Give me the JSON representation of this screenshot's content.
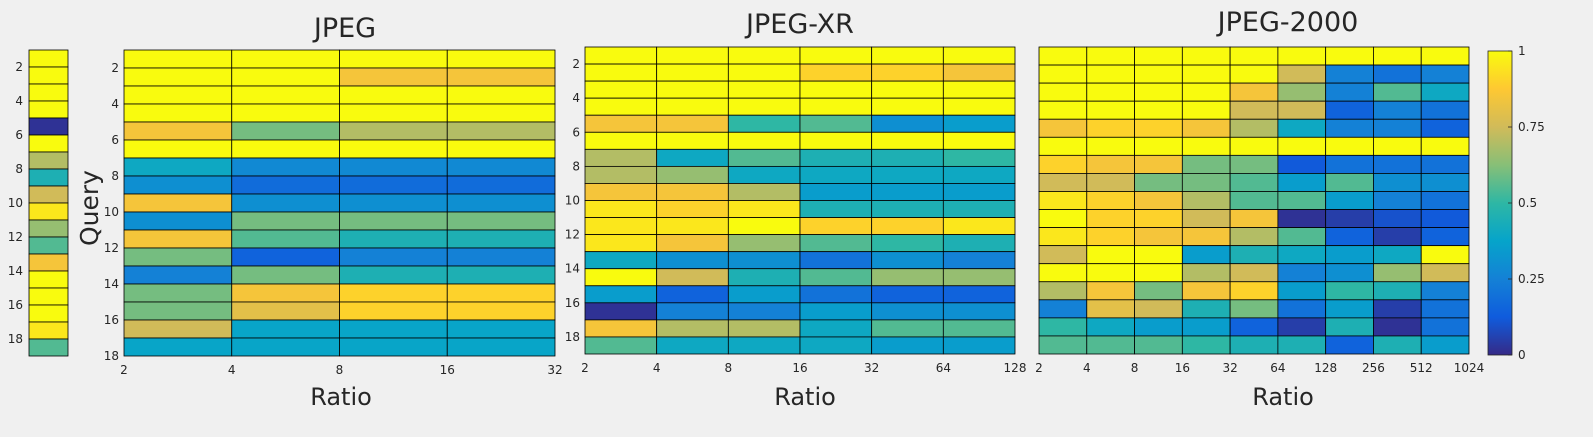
{
  "colormap": [
    "#352a87",
    "#0f5cdd",
    "#1481d6",
    "#06a4ca",
    "#2eb7a4",
    "#87bf77",
    "#d1bb59",
    "#fec832",
    "#f9fb0e"
  ],
  "colorbar": {
    "ticks": [
      0,
      0.25,
      0.5,
      0.75,
      1
    ],
    "labels": [
      "0",
      "0.25",
      "0.5",
      "0.75",
      "1"
    ]
  },
  "chart_data": [
    {
      "type": "heatmap",
      "title": "",
      "ylabel": "",
      "xlabel": "",
      "y_ticks": [
        "2",
        "4",
        "6",
        "8",
        "10",
        "12",
        "14",
        "16",
        "18"
      ],
      "values": [
        [
          1
        ],
        [
          1
        ],
        [
          1
        ],
        [
          1
        ],
        [
          0.02
        ],
        [
          1
        ],
        [
          0.7
        ],
        [
          0.45
        ],
        [
          0.75
        ],
        [
          0.95
        ],
        [
          0.65
        ],
        [
          0.55
        ],
        [
          0.85
        ],
        [
          1
        ],
        [
          1
        ],
        [
          1
        ],
        [
          0.95
        ],
        [
          0.55
        ]
      ]
    },
    {
      "type": "heatmap",
      "title": "JPEG",
      "xlabel": "Ratio",
      "ylabel": "Query",
      "x_ticks": [
        "2",
        "4",
        "8",
        "16",
        "32"
      ],
      "y_ticks": [
        "2",
        "4",
        "6",
        "8",
        "10",
        "12",
        "14",
        "16",
        "18"
      ],
      "values": [
        [
          1,
          1,
          1,
          1
        ],
        [
          1,
          1,
          0.85,
          0.85
        ],
        [
          1,
          1,
          1,
          1
        ],
        [
          1,
          1,
          1,
          1
        ],
        [
          0.85,
          0.6,
          0.7,
          0.7
        ],
        [
          1,
          1,
          1,
          1
        ],
        [
          0.4,
          0.28,
          0.28,
          0.28
        ],
        [
          0.3,
          0.18,
          0.18,
          0.18
        ],
        [
          0.85,
          0.3,
          0.3,
          0.3
        ],
        [
          0.3,
          0.6,
          0.6,
          0.6
        ],
        [
          0.85,
          0.55,
          0.45,
          0.45
        ],
        [
          0.6,
          0.15,
          0.25,
          0.25
        ],
        [
          0.25,
          0.6,
          0.45,
          0.45
        ],
        [
          0.6,
          0.85,
          0.9,
          0.9
        ],
        [
          0.6,
          0.8,
          0.9,
          0.9
        ],
        [
          0.75,
          0.38,
          0.38,
          0.38
        ],
        [
          0.38,
          0.38,
          0.38,
          0.38
        ]
      ]
    },
    {
      "type": "heatmap",
      "title": "JPEG-XR",
      "xlabel": "Ratio",
      "ylabel": "",
      "x_ticks": [
        "2",
        "4",
        "8",
        "16",
        "32",
        "64",
        "128"
      ],
      "y_ticks": [
        "2",
        "4",
        "6",
        "8",
        "10",
        "12",
        "14",
        "16",
        "18"
      ],
      "values": [
        [
          1,
          1,
          1,
          1,
          1,
          1
        ],
        [
          1,
          1,
          1,
          0.9,
          0.9,
          0.85
        ],
        [
          1,
          1,
          1,
          1,
          1,
          1
        ],
        [
          1,
          1,
          1,
          1,
          1,
          1
        ],
        [
          0.85,
          0.85,
          0.5,
          0.55,
          0.3,
          0.35
        ],
        [
          1,
          1,
          1,
          1,
          1,
          1
        ],
        [
          0.7,
          0.4,
          0.55,
          0.45,
          0.45,
          0.5
        ],
        [
          0.7,
          0.65,
          0.4,
          0.4,
          0.4,
          0.4
        ],
        [
          0.85,
          0.85,
          0.7,
          0.35,
          0.35,
          0.35
        ],
        [
          0.95,
          0.9,
          0.95,
          0.45,
          0.45,
          0.45
        ],
        [
          0.95,
          0.95,
          1,
          0.9,
          0.9,
          0.95
        ],
        [
          0.95,
          0.85,
          0.65,
          0.55,
          0.5,
          0.45
        ],
        [
          0.4,
          0.3,
          0.3,
          0.2,
          0.3,
          0.25
        ],
        [
          1,
          0.75,
          0.45,
          0.55,
          0.65,
          0.65
        ],
        [
          0.35,
          0.15,
          0.35,
          0.2,
          0.15,
          0.15
        ],
        [
          0.02,
          0.25,
          0.25,
          0.35,
          0.3,
          0.3
        ],
        [
          0.85,
          0.7,
          0.7,
          0.4,
          0.55,
          0.55
        ],
        [
          0.55,
          0.4,
          0.4,
          0.4,
          0.35,
          0.35
        ]
      ]
    },
    {
      "type": "heatmap",
      "title": "JPEG-2000",
      "xlabel": "Ratio",
      "ylabel": "",
      "x_ticks": [
        "2",
        "4",
        "8",
        "16",
        "32",
        "64",
        "128",
        "256",
        "512",
        "1024"
      ],
      "y_ticks": [
        "2",
        "4",
        "6",
        "8",
        "10",
        "12",
        "14",
        "16",
        "18"
      ],
      "values": [
        [
          1,
          1,
          1,
          1,
          1,
          1,
          1,
          1,
          1
        ],
        [
          1,
          1,
          1,
          1,
          1,
          0.75,
          0.25,
          0.2,
          0.25
        ],
        [
          1,
          1,
          1,
          1,
          0.85,
          0.65,
          0.25,
          0.55,
          0.4
        ],
        [
          1,
          1,
          1,
          1,
          0.75,
          0.75,
          0.15,
          0.25,
          0.2
        ],
        [
          0.85,
          0.9,
          0.9,
          0.85,
          0.7,
          0.4,
          0.25,
          0.25,
          0.15
        ],
        [
          1,
          1,
          1,
          1,
          1,
          1,
          1,
          1,
          1
        ],
        [
          0.9,
          0.85,
          0.85,
          0.6,
          0.6,
          0.12,
          0.2,
          0.2,
          0.2
        ],
        [
          0.75,
          0.75,
          0.6,
          0.6,
          0.55,
          0.35,
          0.55,
          0.3,
          0.3
        ],
        [
          0.95,
          0.9,
          0.85,
          0.7,
          0.55,
          0.55,
          0.35,
          0.25,
          0.2
        ],
        [
          1,
          0.9,
          0.9,
          0.75,
          0.85,
          0.02,
          0.05,
          0.1,
          0.12
        ],
        [
          0.95,
          0.9,
          0.85,
          0.85,
          0.7,
          0.55,
          0.15,
          0.05,
          0.15
        ],
        [
          0.75,
          1,
          1,
          0.35,
          0.45,
          0.4,
          0.35,
          0.4,
          1
        ],
        [
          1,
          1,
          1,
          0.7,
          0.75,
          0.25,
          0.3,
          0.65,
          0.75
        ],
        [
          0.7,
          0.85,
          0.6,
          0.85,
          0.9,
          0.35,
          0.5,
          0.45,
          0.25
        ],
        [
          0.25,
          0.8,
          0.75,
          0.45,
          0.6,
          0.2,
          0.35,
          0.05,
          0.2
        ],
        [
          0.5,
          0.4,
          0.35,
          0.35,
          0.15,
          0.05,
          0.45,
          0.02,
          0.2
        ],
        [
          0.55,
          0.55,
          0.55,
          0.5,
          0.45,
          0.45,
          0.15,
          0.45,
          0.35
        ]
      ]
    }
  ]
}
